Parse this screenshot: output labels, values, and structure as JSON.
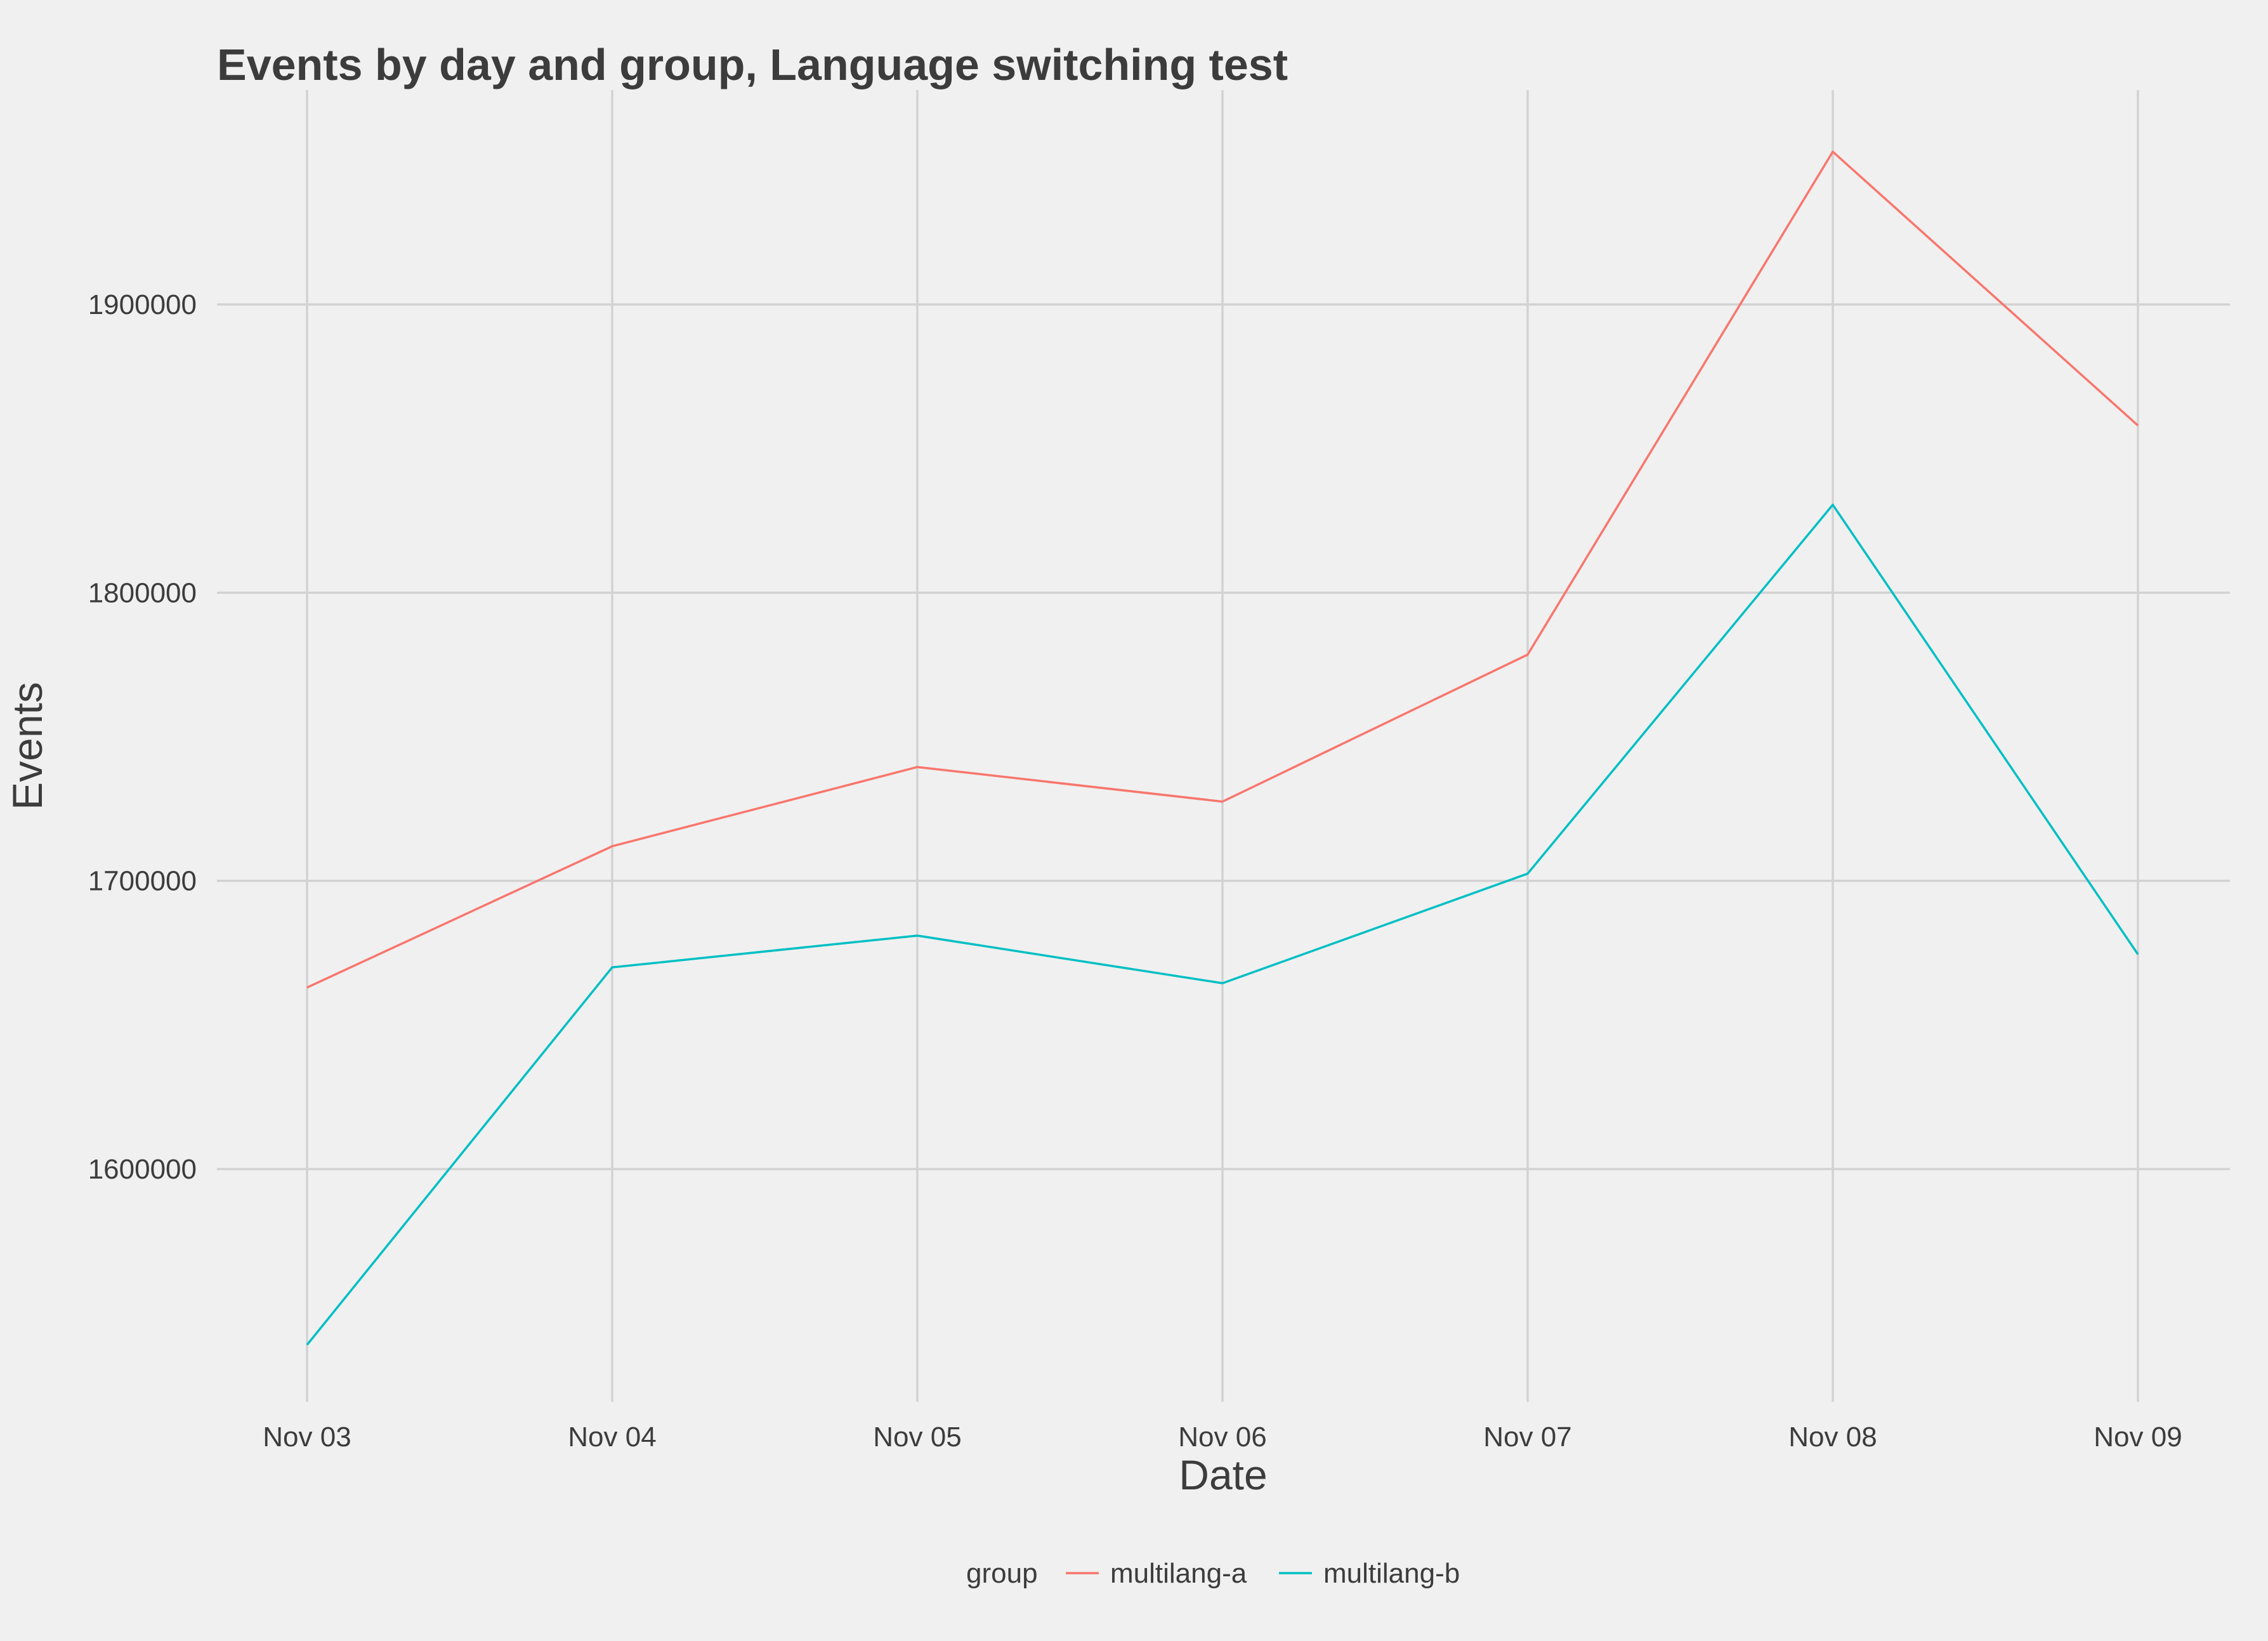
{
  "chart_data": {
    "type": "line",
    "title": "Events by day and group, Language switching test",
    "xlabel": "Date",
    "ylabel": "Events",
    "categories": [
      "Nov 03",
      "Nov 04",
      "Nov 05",
      "Nov 06",
      "Nov 07",
      "Nov 08",
      "Nov 09"
    ],
    "y_ticks": [
      1600000,
      1700000,
      1800000,
      1900000
    ],
    "ylim": [
      1525000,
      1975000
    ],
    "grid": true,
    "legend": {
      "title": "group",
      "placement": "bottom"
    },
    "series": [
      {
        "name": "multilang-a",
        "color": "#f8766d",
        "values": [
          1663000,
          1712000,
          1739500,
          1727500,
          1778500,
          1953000,
          1858000
        ]
      },
      {
        "name": "multilang-b",
        "color": "#00bfc4",
        "values": [
          1539000,
          1670000,
          1681000,
          1664500,
          1702500,
          1830500,
          1674500
        ]
      }
    ]
  }
}
